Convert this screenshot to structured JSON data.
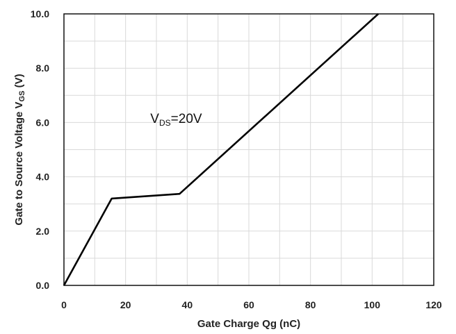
{
  "chart_data": {
    "type": "line",
    "xlabel": "Gate Charge Qg (nC)",
    "ylabel_parts": {
      "main": "Gate to  Source  Voltage V",
      "sub": "GS",
      "end": " (V)"
    },
    "xlim": [
      0,
      120
    ],
    "ylim": [
      0.0,
      10.0
    ],
    "x_ticks": [
      0,
      20,
      40,
      60,
      80,
      100,
      120
    ],
    "x_tick_labels": [
      "0",
      "20",
      "40",
      "60",
      "80",
      "100",
      "120"
    ],
    "y_ticks": [
      0,
      2,
      4,
      6,
      8,
      10
    ],
    "y_tick_labels": [
      "0.0",
      "2.0",
      "4.0",
      "6.0",
      "8.0",
      "10.0"
    ],
    "grid": true,
    "series": [
      {
        "x": [
          0,
          15.5,
          37.5,
          102
        ],
        "y": [
          0.0,
          3.2,
          3.37,
          10.0
        ]
      }
    ],
    "annotation": {
      "main": "V",
      "sub": "DS",
      "end": "=20V",
      "x": 33,
      "y": 6.6
    }
  }
}
